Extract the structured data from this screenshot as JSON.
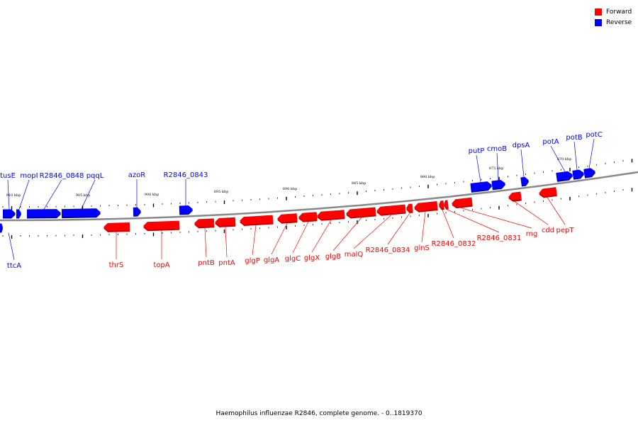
{
  "legend": [
    {
      "label": "Forward",
      "color": "#ff0000"
    },
    {
      "label": "Reverse",
      "color": "#0000ff"
    }
  ],
  "colors": {
    "forward": "#ff0000",
    "forward_shadow": "#b80000",
    "reverse": "#0000ff",
    "reverse_shadow": "#00009c",
    "backbone": "#888888"
  },
  "caption": "Haemophilus influenzae R2846, complete genome. - 0..1819370",
  "scale_labels": [
    "910 kbp",
    "905 kbp",
    "900 kbp",
    "895 kbp",
    "890 kbp",
    "885 kbp",
    "880 kbp",
    "875 kbp",
    "870 kbp"
  ],
  "genes": [
    {
      "name": "tusE",
      "strand": "reverse"
    },
    {
      "name": "mopI",
      "strand": "reverse"
    },
    {
      "name": "R2846_0848",
      "strand": "reverse"
    },
    {
      "name": "pqqL",
      "strand": "reverse"
    },
    {
      "name": "azoR",
      "strand": "reverse"
    },
    {
      "name": "R2846_0843",
      "strand": "reverse"
    },
    {
      "name": "putP",
      "strand": "reverse"
    },
    {
      "name": "cmoB",
      "strand": "reverse"
    },
    {
      "name": "dpsA",
      "strand": "reverse"
    },
    {
      "name": "potA",
      "strand": "reverse"
    },
    {
      "name": "potB",
      "strand": "reverse"
    },
    {
      "name": "potC",
      "strand": "reverse"
    },
    {
      "name": "ttcA",
      "strand": "reverse"
    },
    {
      "name": "thrS",
      "strand": "forward"
    },
    {
      "name": "topA",
      "strand": "forward"
    },
    {
      "name": "pntB",
      "strand": "forward"
    },
    {
      "name": "pntA",
      "strand": "forward"
    },
    {
      "name": "glgP",
      "strand": "forward"
    },
    {
      "name": "glgA",
      "strand": "forward"
    },
    {
      "name": "glgC",
      "strand": "forward"
    },
    {
      "name": "glgX",
      "strand": "forward"
    },
    {
      "name": "glgB",
      "strand": "forward"
    },
    {
      "name": "malQ",
      "strand": "forward"
    },
    {
      "name": "R2846_0834",
      "strand": "forward"
    },
    {
      "name": "glnS",
      "strand": "forward"
    },
    {
      "name": "R2846_0832",
      "strand": "forward"
    },
    {
      "name": "R2846_0831",
      "strand": "forward"
    },
    {
      "name": "rng",
      "strand": "forward"
    },
    {
      "name": "cdd",
      "strand": "forward"
    },
    {
      "name": "pepT",
      "strand": "forward"
    }
  ]
}
